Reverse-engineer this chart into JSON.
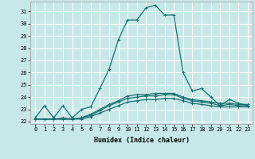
{
  "xlabel": "Humidex (Indice chaleur)",
  "background_color": "#c8e8e8",
  "grid_color": "#ffffff",
  "line_color": "#1a7070",
  "xlim": [
    -0.5,
    23.5
  ],
  "ylim": [
    21.8,
    31.8
  ],
  "yticks": [
    22,
    23,
    24,
    25,
    26,
    27,
    28,
    29,
    30,
    31
  ],
  "xticks": [
    0,
    1,
    2,
    3,
    4,
    5,
    6,
    7,
    8,
    9,
    10,
    11,
    12,
    13,
    14,
    15,
    16,
    17,
    18,
    19,
    20,
    21,
    22,
    23
  ],
  "xtick_labels": [
    "0",
    "1",
    "2",
    "3",
    "4",
    "5",
    "6",
    "7",
    "8",
    "9",
    "10",
    "11",
    "12",
    "13",
    "14",
    "15",
    "16",
    "17",
    "18",
    "19",
    "20",
    "21",
    "22",
    "23"
  ],
  "series": [
    {
      "x": [
        0,
        1,
        2,
        3,
        4,
        5,
        6,
        7,
        8,
        9,
        10,
        11,
        12,
        13,
        14,
        15,
        16,
        17,
        18,
        19,
        20,
        21,
        22,
        23
      ],
      "y": [
        22.3,
        23.3,
        22.3,
        23.3,
        22.3,
        23.0,
        23.2,
        24.7,
        26.3,
        28.7,
        30.3,
        30.3,
        31.3,
        31.5,
        30.7,
        30.7,
        26.0,
        24.5,
        24.7,
        24.0,
        23.3,
        23.8,
        23.5,
        23.3
      ]
    },
    {
      "x": [
        0,
        1,
        2,
        3,
        4,
        5,
        6,
        7,
        8,
        9,
        10,
        11,
        12,
        13,
        14,
        15,
        16,
        17,
        18,
        19,
        20,
        21,
        22,
        23
      ],
      "y": [
        22.2,
        22.2,
        22.2,
        22.2,
        22.2,
        22.2,
        22.4,
        22.7,
        23.0,
        23.3,
        23.6,
        23.7,
        23.8,
        23.8,
        23.9,
        23.9,
        23.7,
        23.5,
        23.4,
        23.3,
        23.2,
        23.2,
        23.2,
        23.2
      ]
    },
    {
      "x": [
        0,
        1,
        2,
        3,
        4,
        5,
        6,
        7,
        8,
        9,
        10,
        11,
        12,
        13,
        14,
        15,
        16,
        17,
        18,
        19,
        20,
        21,
        22,
        23
      ],
      "y": [
        22.2,
        22.2,
        22.2,
        22.3,
        22.2,
        22.3,
        22.5,
        22.9,
        23.3,
        23.6,
        23.9,
        24.0,
        24.1,
        24.1,
        24.2,
        24.2,
        23.9,
        23.7,
        23.6,
        23.5,
        23.3,
        23.4,
        23.3,
        23.3
      ]
    },
    {
      "x": [
        0,
        1,
        2,
        3,
        4,
        5,
        6,
        7,
        8,
        9,
        10,
        11,
        12,
        13,
        14,
        15,
        16,
        17,
        18,
        19,
        20,
        21,
        22,
        23
      ],
      "y": [
        22.2,
        22.2,
        22.2,
        22.2,
        22.2,
        22.3,
        22.6,
        23.0,
        23.4,
        23.7,
        24.1,
        24.2,
        24.2,
        24.3,
        24.3,
        24.3,
        24.0,
        23.8,
        23.7,
        23.6,
        23.5,
        23.5,
        23.4,
        23.4
      ]
    }
  ]
}
